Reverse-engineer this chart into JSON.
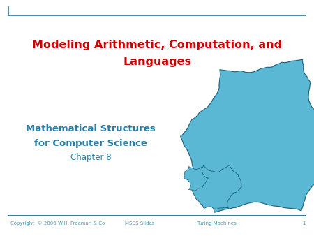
{
  "title_line1": "Modeling Arithmetic, Computation, and",
  "title_line2": "Languages",
  "subtitle_line1": "Mathematical Structures",
  "subtitle_line2": "for Computer Science",
  "subtitle_line3": "Chapter 8",
  "footer_left": "Copyright  © 2006 W.H. Freeman & Co",
  "footer_center": "MSCS Slides",
  "footer_right": "Turing Machines",
  "footer_page": "1",
  "title_color": "#cc0000",
  "subtitle_color": "#2a7fa8",
  "footer_color": "#4a9ab5",
  "header_line_color": "#2a7a9a",
  "footer_line_color": "#2a7a9a",
  "background_color": "#ffffff",
  "fractal_fill_color": "#5ab8d4",
  "fractal_edge_color": "#1a5e7a",
  "title_fontsize": 11.5,
  "subtitle_fontsize": 9.5,
  "chapter_fontsize": 8.5,
  "footer_fontsize": 5.0
}
